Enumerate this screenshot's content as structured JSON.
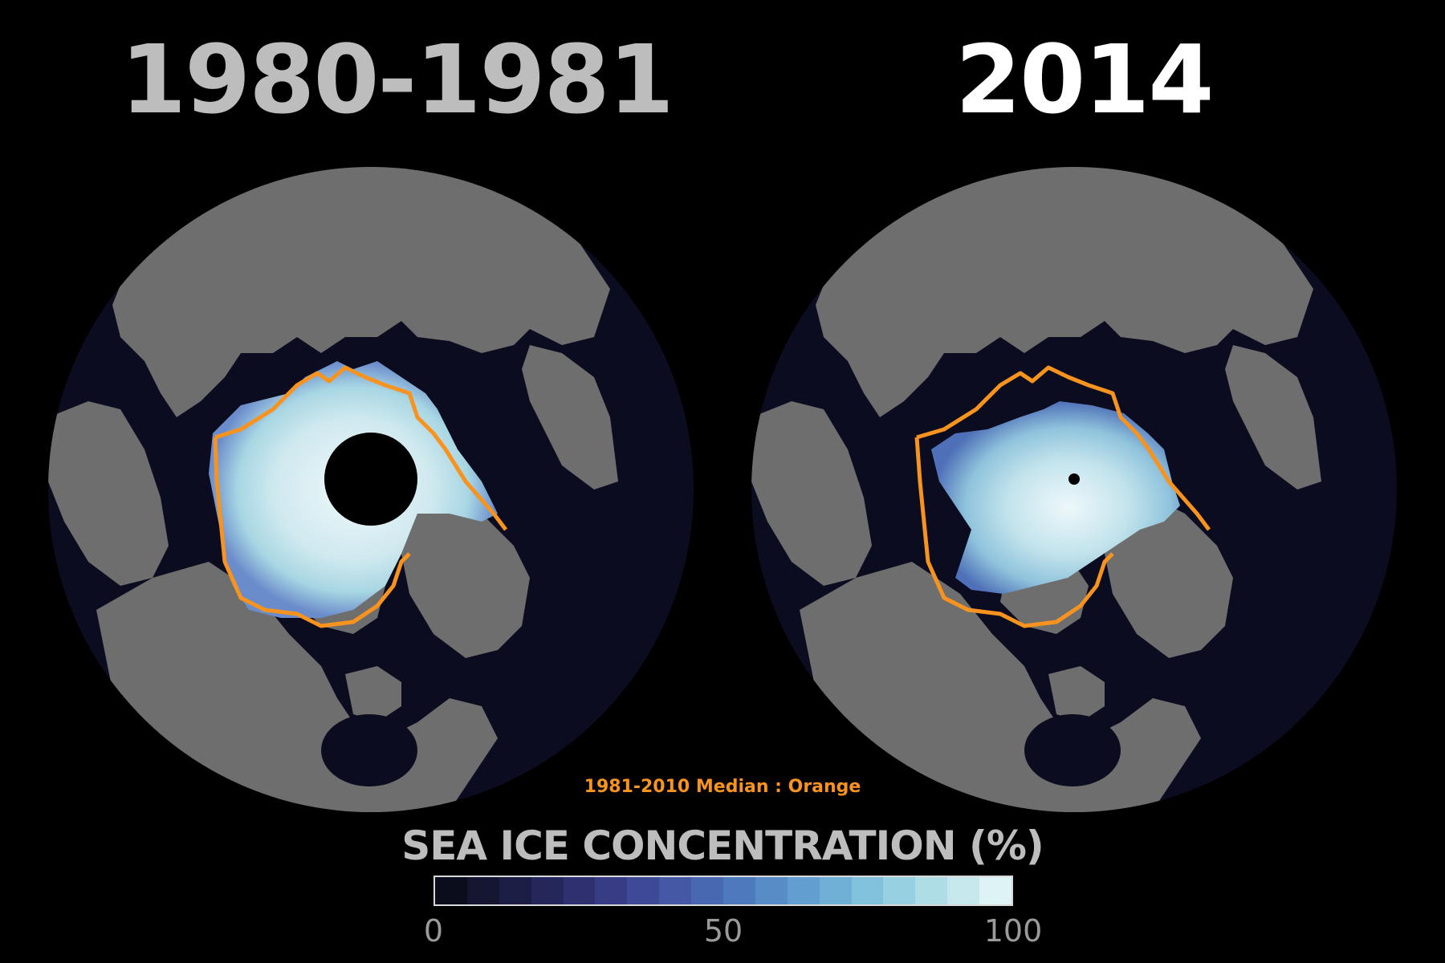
{
  "panels": [
    {
      "title": "1980-1981"
    },
    {
      "title": "2014"
    }
  ],
  "median_note": "1981-2010 Median : Orange",
  "scale": {
    "title": "SEA ICE CONCENTRATION (%)",
    "ticks": [
      "0",
      "50",
      "100"
    ],
    "colors": [
      "#0b0c1c",
      "#141530",
      "#1c1d44",
      "#25275a",
      "#2f3070",
      "#383c84",
      "#3f4a96",
      "#4458a6",
      "#4868b2",
      "#4e7abd",
      "#578cc6",
      "#629ecf",
      "#70b0d6",
      "#82c1dc",
      "#96d0e1",
      "#aeddE6",
      "#c6e8ed",
      "#def3f5"
    ]
  },
  "colors": {
    "background": "#000000",
    "ocean": "#0b0c1f",
    "land": "#6e6e6e",
    "median_line": "#f7931e",
    "pole_hole": "#000000"
  }
}
